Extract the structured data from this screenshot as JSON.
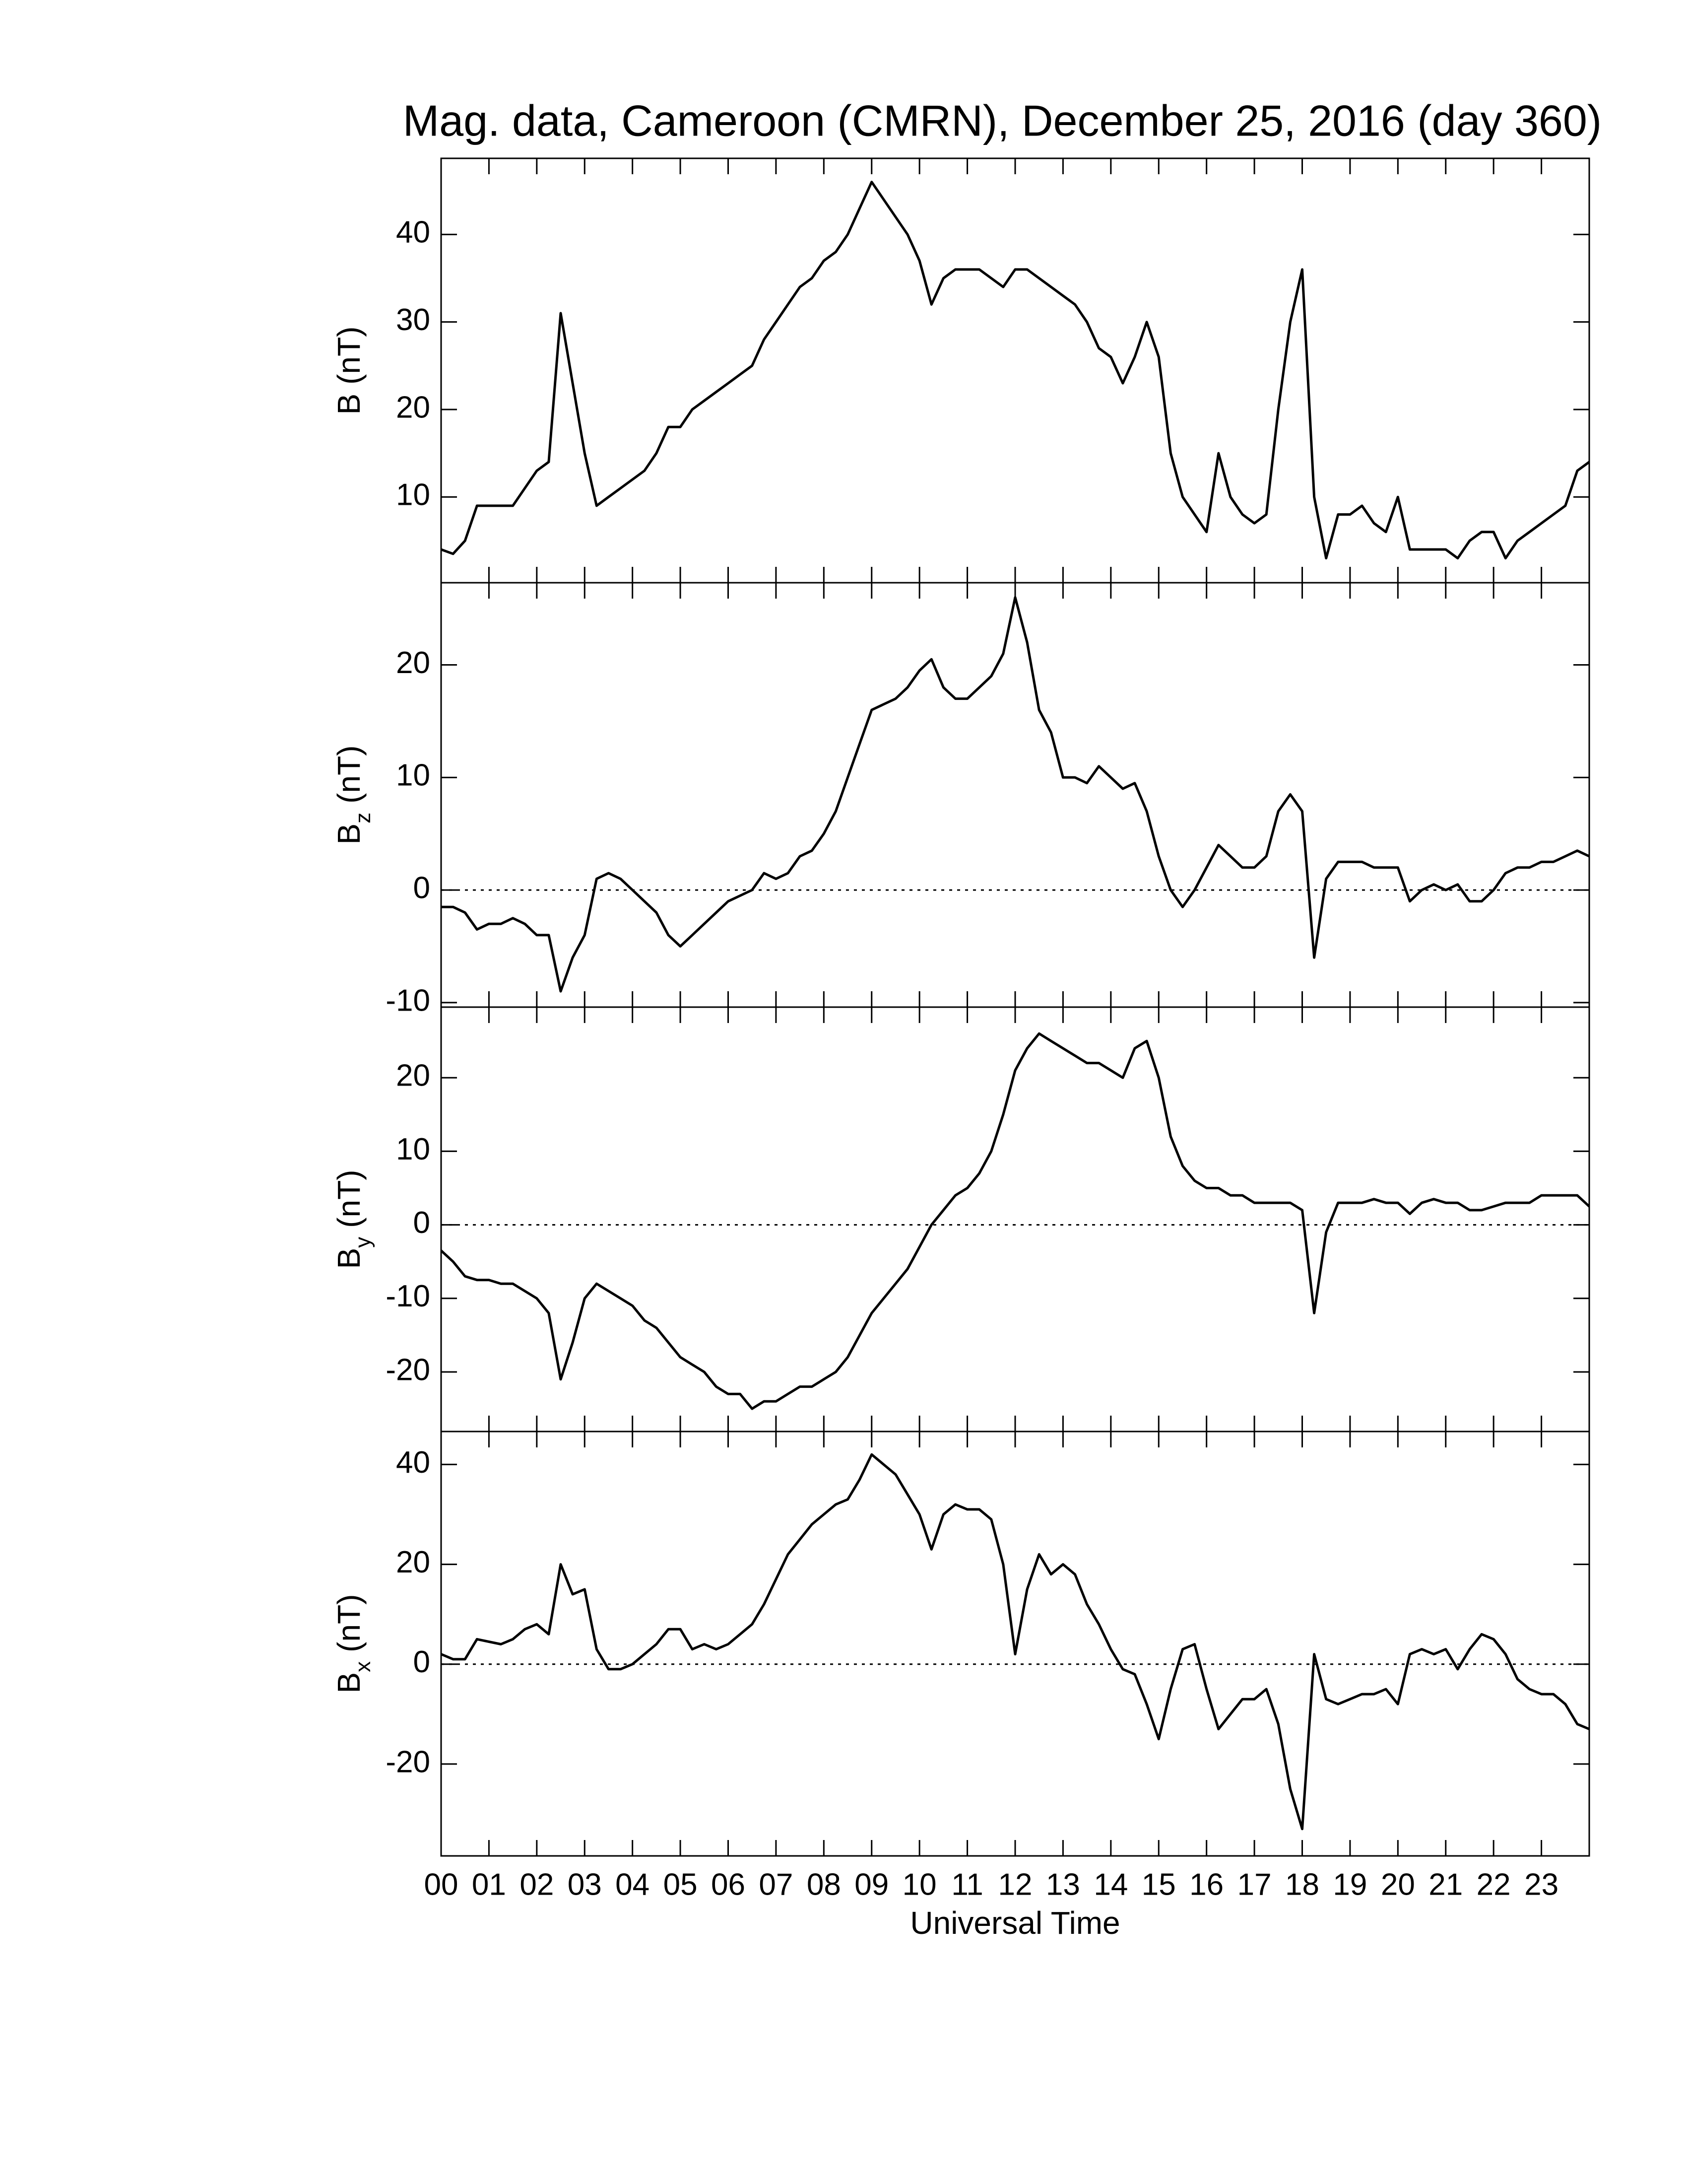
{
  "chart_data": [
    {
      "type": "line",
      "title": "Mag. data, Cameroon (CMRN), December 25, 2016 (day 360)",
      "ylabel": "B",
      "ylabel_unit": "(nT)",
      "xlim": [
        0,
        24
      ],
      "ylim": [
        0.2,
        48.7
      ],
      "yticks": [
        10,
        20,
        30,
        40
      ],
      "zero_line": false,
      "x": [
        0,
        0.25,
        0.5,
        0.75,
        1,
        1.25,
        1.5,
        1.75,
        2,
        2.25,
        2.5,
        2.75,
        3,
        3.25,
        3.5,
        3.75,
        4,
        4.25,
        4.5,
        4.75,
        5,
        5.25,
        5.5,
        5.75,
        6,
        6.25,
        6.5,
        6.75,
        7,
        7.25,
        7.5,
        7.75,
        8,
        8.25,
        8.5,
        8.75,
        9,
        9.25,
        9.5,
        9.75,
        10,
        10.25,
        10.5,
        10.75,
        11,
        11.25,
        11.5,
        11.75,
        12,
        12.25,
        12.5,
        12.75,
        13,
        13.25,
        13.5,
        13.75,
        14,
        14.25,
        14.5,
        14.75,
        15,
        15.25,
        15.5,
        15.75,
        16,
        16.25,
        16.5,
        16.75,
        17,
        17.25,
        17.5,
        17.75,
        18,
        18.25,
        18.5,
        18.75,
        19,
        19.25,
        19.5,
        19.75,
        20,
        20.25,
        20.5,
        20.75,
        21,
        21.25,
        21.5,
        21.75,
        22,
        22.25,
        22.5,
        22.75,
        23,
        23.25,
        23.5,
        23.75,
        24
      ],
      "series": [
        {
          "color": "#000000",
          "values": [
            4,
            3.5,
            5,
            9,
            9,
            9,
            9,
            11,
            13,
            14,
            31,
            23,
            15,
            9,
            10,
            11,
            12,
            13,
            15,
            18,
            18,
            20,
            21,
            22,
            23,
            24,
            25,
            28,
            30,
            32,
            34,
            35,
            37,
            38,
            40,
            43,
            46,
            44,
            42,
            40,
            37,
            32,
            35,
            36,
            36,
            36,
            35,
            34,
            36,
            36,
            35,
            34,
            33,
            32,
            30,
            27,
            26,
            23,
            26,
            30,
            26,
            15,
            10,
            8,
            6,
            15,
            10,
            8,
            7,
            8,
            20,
            30,
            36,
            10,
            3,
            8,
            8,
            9,
            7,
            6,
            10,
            4,
            4,
            4,
            4,
            3,
            5,
            6,
            6,
            3,
            5,
            6,
            7,
            8,
            9,
            13,
            14
          ]
        }
      ]
    },
    {
      "type": "line",
      "ylabel": "B",
      "ylabel_subscript": "z",
      "ylabel_unit": "(nT)",
      "xlim": [
        0,
        24
      ],
      "ylim": [
        -10.4,
        27.3
      ],
      "yticks": [
        -10,
        0,
        10,
        20
      ],
      "zero_line": true,
      "x": [
        0,
        0.25,
        0.5,
        0.75,
        1,
        1.25,
        1.5,
        1.75,
        2,
        2.25,
        2.5,
        2.75,
        3,
        3.25,
        3.5,
        3.75,
        4,
        4.25,
        4.5,
        4.75,
        5,
        5.25,
        5.5,
        5.75,
        6,
        6.25,
        6.5,
        6.75,
        7,
        7.25,
        7.5,
        7.75,
        8,
        8.25,
        8.5,
        8.75,
        9,
        9.25,
        9.5,
        9.75,
        10,
        10.25,
        10.5,
        10.75,
        11,
        11.25,
        11.5,
        11.75,
        12,
        12.25,
        12.5,
        12.75,
        13,
        13.25,
        13.5,
        13.75,
        14,
        14.25,
        14.5,
        14.75,
        15,
        15.25,
        15.5,
        15.75,
        16,
        16.25,
        16.5,
        16.75,
        17,
        17.25,
        17.5,
        17.75,
        18,
        18.25,
        18.5,
        18.75,
        19,
        19.25,
        19.5,
        19.75,
        20,
        20.25,
        20.5,
        20.75,
        21,
        21.25,
        21.5,
        21.75,
        22,
        22.25,
        22.5,
        22.75,
        23,
        23.25,
        23.5,
        23.75,
        24
      ],
      "series": [
        {
          "color": "#000000",
          "values": [
            -1.5,
            -1.5,
            -2,
            -3.5,
            -3,
            -3,
            -2.5,
            -3,
            -4,
            -4,
            -9,
            -6,
            -4,
            1,
            1.5,
            1,
            0,
            -1,
            -2,
            -4,
            -5,
            -4,
            -3,
            -2,
            -1,
            -0.5,
            0,
            1.5,
            1,
            1.5,
            3,
            3.5,
            5,
            7,
            10,
            13,
            16,
            16.5,
            17,
            18,
            19.5,
            20.5,
            18,
            17,
            17,
            18,
            19,
            21,
            26,
            22,
            16,
            14,
            10,
            10,
            9.5,
            11,
            10,
            9,
            9.5,
            7,
            3,
            0,
            -1.5,
            0,
            2,
            4,
            3,
            2,
            2,
            3,
            7,
            8.5,
            7,
            -6,
            1,
            2.5,
            2.5,
            2.5,
            2,
            2,
            2,
            -1,
            0,
            0.5,
            0,
            0.5,
            -1,
            -1,
            0,
            1.5,
            2,
            2,
            2.5,
            2.5,
            3,
            3.5,
            3
          ]
        }
      ]
    },
    {
      "type": "line",
      "ylabel": "B",
      "ylabel_subscript": "y",
      "ylabel_unit": "(nT)",
      "xlim": [
        0,
        24
      ],
      "ylim": [
        -28.1,
        29.6
      ],
      "yticks": [
        -20,
        -10,
        0,
        10,
        20
      ],
      "zero_line": true,
      "x": [
        0,
        0.25,
        0.5,
        0.75,
        1,
        1.25,
        1.5,
        1.75,
        2,
        2.25,
        2.5,
        2.75,
        3,
        3.25,
        3.5,
        3.75,
        4,
        4.25,
        4.5,
        4.75,
        5,
        5.25,
        5.5,
        5.75,
        6,
        6.25,
        6.5,
        6.75,
        7,
        7.25,
        7.5,
        7.75,
        8,
        8.25,
        8.5,
        8.75,
        9,
        9.25,
        9.5,
        9.75,
        10,
        10.25,
        10.5,
        10.75,
        11,
        11.25,
        11.5,
        11.75,
        12,
        12.25,
        12.5,
        12.75,
        13,
        13.25,
        13.5,
        13.75,
        14,
        14.25,
        14.5,
        14.75,
        15,
        15.25,
        15.5,
        15.75,
        16,
        16.25,
        16.5,
        16.75,
        17,
        17.25,
        17.5,
        17.75,
        18,
        18.25,
        18.5,
        18.75,
        19,
        19.25,
        19.5,
        19.75,
        20,
        20.25,
        20.5,
        20.75,
        21,
        21.25,
        21.5,
        21.75,
        22,
        22.25,
        22.5,
        22.75,
        23,
        23.25,
        23.5,
        23.75,
        24
      ],
      "series": [
        {
          "color": "#000000",
          "values": [
            -3.5,
            -5,
            -7,
            -7.5,
            -7.5,
            -8,
            -8,
            -9,
            -10,
            -12,
            -21,
            -16,
            -10,
            -8,
            -9,
            -10,
            -11,
            -13,
            -14,
            -16,
            -18,
            -19,
            -20,
            -22,
            -23,
            -23,
            -25,
            -24,
            -24,
            -23,
            -22,
            -22,
            -21,
            -20,
            -18,
            -15,
            -12,
            -10,
            -8,
            -6,
            -3,
            0,
            2,
            4,
            5,
            7,
            10,
            15,
            21,
            24,
            26,
            25,
            24,
            23,
            22,
            22,
            21,
            20,
            24,
            25,
            20,
            12,
            8,
            6,
            5,
            5,
            4,
            4,
            3,
            3,
            3,
            3,
            2,
            -12,
            -1,
            3,
            3,
            3,
            3.5,
            3,
            3,
            1.5,
            3,
            3.5,
            3,
            3,
            2,
            2,
            2.5,
            3,
            3,
            3,
            4,
            4,
            4,
            4,
            2.5
          ]
        }
      ]
    },
    {
      "type": "line",
      "ylabel": "B",
      "ylabel_subscript": "x",
      "ylabel_unit": "(nT)",
      "xlabel": "Universal Time",
      "xlim": [
        0,
        24
      ],
      "ylim": [
        -38.4,
        46.6
      ],
      "yticks": [
        -20,
        0,
        20,
        40
      ],
      "zero_line": true,
      "xticks": [
        {
          "value": 0,
          "label": "00"
        },
        {
          "value": 1,
          "label": "01"
        },
        {
          "value": 2,
          "label": "02"
        },
        {
          "value": 3,
          "label": "03"
        },
        {
          "value": 4,
          "label": "04"
        },
        {
          "value": 5,
          "label": "05"
        },
        {
          "value": 6,
          "label": "06"
        },
        {
          "value": 7,
          "label": "07"
        },
        {
          "value": 8,
          "label": "08"
        },
        {
          "value": 9,
          "label": "09"
        },
        {
          "value": 10,
          "label": "10"
        },
        {
          "value": 11,
          "label": "11"
        },
        {
          "value": 12,
          "label": "12"
        },
        {
          "value": 13,
          "label": "13"
        },
        {
          "value": 14,
          "label": "14"
        },
        {
          "value": 15,
          "label": "15"
        },
        {
          "value": 16,
          "label": "16"
        },
        {
          "value": 17,
          "label": "17"
        },
        {
          "value": 18,
          "label": "18"
        },
        {
          "value": 19,
          "label": "19"
        },
        {
          "value": 20,
          "label": "20"
        },
        {
          "value": 21,
          "label": "21"
        },
        {
          "value": 22,
          "label": "22"
        },
        {
          "value": 23,
          "label": "23"
        }
      ],
      "x": [
        0,
        0.25,
        0.5,
        0.75,
        1,
        1.25,
        1.5,
        1.75,
        2,
        2.25,
        2.5,
        2.75,
        3,
        3.25,
        3.5,
        3.75,
        4,
        4.25,
        4.5,
        4.75,
        5,
        5.25,
        5.5,
        5.75,
        6,
        6.25,
        6.5,
        6.75,
        7,
        7.25,
        7.5,
        7.75,
        8,
        8.25,
        8.5,
        8.75,
        9,
        9.25,
        9.5,
        9.75,
        10,
        10.25,
        10.5,
        10.75,
        11,
        11.25,
        11.5,
        11.75,
        12,
        12.25,
        12.5,
        12.75,
        13,
        13.25,
        13.5,
        13.75,
        14,
        14.25,
        14.5,
        14.75,
        15,
        15.25,
        15.5,
        15.75,
        16,
        16.25,
        16.5,
        16.75,
        17,
        17.25,
        17.5,
        17.75,
        18,
        18.25,
        18.5,
        18.75,
        19,
        19.25,
        19.5,
        19.75,
        20,
        20.25,
        20.5,
        20.75,
        21,
        21.25,
        21.5,
        21.75,
        22,
        22.25,
        22.5,
        22.75,
        23,
        23.25,
        23.5,
        23.75,
        24
      ],
      "series": [
        {
          "color": "#000000",
          "values": [
            2,
            1,
            1,
            5,
            4.5,
            4,
            5,
            7,
            8,
            6,
            20,
            14,
            15,
            3,
            -1,
            -1,
            0,
            2,
            4,
            7,
            7,
            3,
            4,
            3,
            4,
            6,
            8,
            12,
            17,
            22,
            25,
            28,
            30,
            32,
            33,
            37,
            42,
            40,
            38,
            34,
            30,
            23,
            30,
            32,
            31,
            31,
            29,
            20,
            2,
            15,
            22,
            18,
            20,
            18,
            12,
            8,
            3,
            -1,
            -2,
            -8,
            -15,
            -5,
            3,
            4,
            -5,
            -13,
            -10,
            -7,
            -7,
            -5,
            -12,
            -25,
            -33,
            2,
            -7,
            -8,
            -7,
            -6,
            -6,
            -5,
            -8,
            2,
            3,
            2,
            3,
            -1,
            3,
            6,
            5,
            2,
            -3,
            -5,
            -6,
            -6,
            -8,
            -12,
            -13
          ]
        }
      ]
    }
  ]
}
